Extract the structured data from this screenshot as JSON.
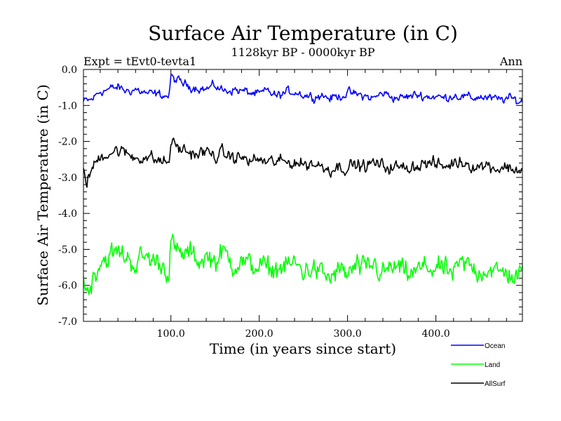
{
  "chart_data": {
    "type": "line",
    "title": "Surface Air Temperature (in C)",
    "subtitle_left": "Expt = tEvt0-tevta1",
    "subtitle_center": "1128kyr BP - 0000kyr BP",
    "subtitle_right": "Ann",
    "xlabel": "Time (in years since start)",
    "ylabel": "Surface Air Temperature (in C)",
    "xlim": [
      1,
      498
    ],
    "ylim": [
      -7.0,
      0.0
    ],
    "xticks": [
      100,
      200,
      300,
      400
    ],
    "xtick_labels": [
      "100.0",
      "200.0",
      "300.0",
      "400.0"
    ],
    "yticks": [
      0,
      -1,
      -2,
      -3,
      -4,
      -5,
      -6,
      -7
    ],
    "ytick_labels": [
      "0.0",
      "-1.0",
      "-2.0",
      "-3.0",
      "-4.0",
      "-5.0",
      "-6.0",
      "-7.0"
    ],
    "x_minor_step": 20,
    "y_minor_step": 0.2,
    "legend_position": "bottom-right",
    "series": [
      {
        "name": "Ocean",
        "color": "#0000ff",
        "x": [
          1,
          10,
          20,
          30,
          40,
          50,
          60,
          70,
          80,
          90,
          98,
          100,
          102,
          110,
          120,
          130,
          140,
          150,
          160,
          170,
          180,
          190,
          200,
          210,
          220,
          230,
          240,
          250,
          260,
          270,
          280,
          290,
          300,
          310,
          320,
          330,
          340,
          350,
          360,
          370,
          380,
          390,
          400,
          410,
          420,
          430,
          440,
          450,
          460,
          470,
          480,
          490,
          498
        ],
        "values": [
          -0.9,
          -0.85,
          -0.6,
          -0.55,
          -0.5,
          -0.6,
          -0.55,
          -0.65,
          -0.7,
          -0.7,
          -0.75,
          -0.2,
          -0.25,
          -0.35,
          -0.45,
          -0.5,
          -0.55,
          -0.45,
          -0.6,
          -0.55,
          -0.6,
          -0.65,
          -0.7,
          -0.6,
          -0.75,
          -0.65,
          -0.6,
          -0.7,
          -0.75,
          -0.7,
          -0.8,
          -0.75,
          -0.65,
          -0.7,
          -0.75,
          -0.8,
          -0.65,
          -0.75,
          -0.8,
          -0.75,
          -0.7,
          -0.75,
          -0.75,
          -0.8,
          -0.7,
          -0.75,
          -0.8,
          -0.75,
          -0.8,
          -0.85,
          -0.8,
          -0.85,
          -0.9
        ]
      },
      {
        "name": "Land",
        "color": "#00ff00",
        "x": [
          1,
          5,
          10,
          20,
          30,
          40,
          50,
          60,
          70,
          80,
          90,
          98,
          100,
          102,
          110,
          120,
          130,
          140,
          150,
          160,
          170,
          180,
          190,
          200,
          210,
          220,
          230,
          240,
          250,
          260,
          270,
          280,
          290,
          300,
          310,
          320,
          330,
          340,
          350,
          360,
          370,
          380,
          390,
          400,
          410,
          420,
          430,
          440,
          450,
          460,
          470,
          480,
          490,
          498
        ],
        "values": [
          -5.7,
          -6.2,
          -5.9,
          -5.3,
          -5.2,
          -5.1,
          -5.2,
          -5.4,
          -5.2,
          -5.3,
          -5.4,
          -5.6,
          -4.7,
          -4.9,
          -5.2,
          -5.1,
          -5.3,
          -5.2,
          -5.3,
          -5.1,
          -5.4,
          -5.3,
          -5.5,
          -5.4,
          -5.6,
          -5.5,
          -5.5,
          -5.4,
          -5.6,
          -5.5,
          -5.7,
          -5.8,
          -5.6,
          -5.7,
          -5.5,
          -5.6,
          -5.4,
          -5.7,
          -5.5,
          -5.6,
          -5.7,
          -5.6,
          -5.5,
          -5.5,
          -5.6,
          -5.7,
          -5.4,
          -5.5,
          -5.6,
          -5.5,
          -5.7,
          -5.6,
          -5.8,
          -5.7
        ]
      },
      {
        "name": "AllSurf",
        "color": "#000000",
        "x": [
          1,
          5,
          10,
          20,
          30,
          40,
          50,
          60,
          70,
          80,
          90,
          98,
          100,
          102,
          110,
          120,
          130,
          140,
          150,
          160,
          170,
          180,
          190,
          200,
          210,
          220,
          230,
          240,
          250,
          260,
          270,
          280,
          290,
          300,
          310,
          320,
          330,
          340,
          350,
          360,
          370,
          380,
          390,
          400,
          410,
          420,
          430,
          440,
          450,
          460,
          470,
          480,
          490,
          498
        ],
        "values": [
          -2.8,
          -3.1,
          -2.8,
          -2.4,
          -2.3,
          -2.25,
          -2.35,
          -2.45,
          -2.4,
          -2.5,
          -2.55,
          -2.6,
          -1.95,
          -2.05,
          -2.2,
          -2.3,
          -2.35,
          -2.3,
          -2.4,
          -2.35,
          -2.45,
          -2.45,
          -2.55,
          -2.5,
          -2.6,
          -2.55,
          -2.6,
          -2.55,
          -2.65,
          -2.6,
          -2.7,
          -2.75,
          -2.7,
          -2.7,
          -2.65,
          -2.7,
          -2.6,
          -2.7,
          -2.7,
          -2.75,
          -2.7,
          -2.65,
          -2.6,
          -2.65,
          -2.7,
          -2.6,
          -2.55,
          -2.65,
          -2.7,
          -2.65,
          -2.75,
          -2.7,
          -2.8,
          -2.75
        ]
      }
    ]
  }
}
